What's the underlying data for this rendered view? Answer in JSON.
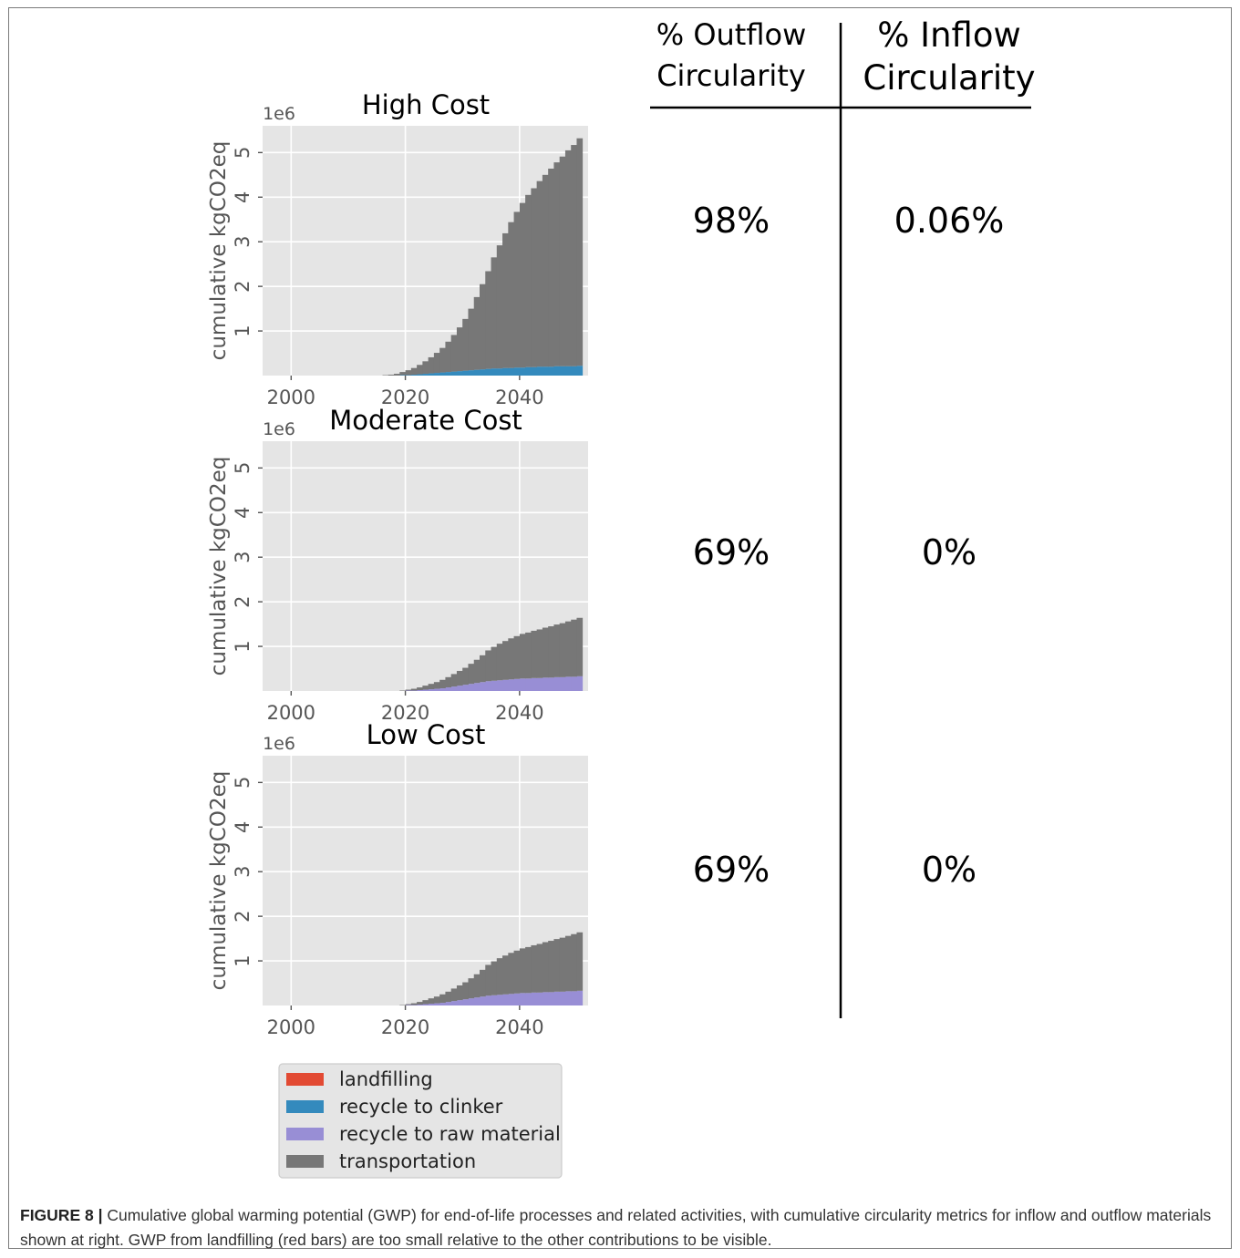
{
  "chart_data": [
    {
      "type": "area",
      "title": "High Cost",
      "ylabel": "cumulative kgCO2eq",
      "y_scale_label": "1e6",
      "xlim": [
        1995,
        2052
      ],
      "ylim": [
        0,
        5.6
      ],
      "x_ticks": [
        "2000",
        "2020",
        "2040"
      ],
      "y_ticks": [
        "1",
        "2",
        "3",
        "4",
        "5"
      ],
      "grid": true,
      "stacked": true,
      "x": [
        2016,
        2017,
        2018,
        2019,
        2020,
        2021,
        2022,
        2023,
        2024,
        2025,
        2026,
        2027,
        2028,
        2029,
        2030,
        2031,
        2032,
        2033,
        2034,
        2035,
        2036,
        2037,
        2038,
        2039,
        2040,
        2041,
        2042,
        2043,
        2044,
        2045,
        2046,
        2047,
        2048,
        2049,
        2050
      ],
      "series": [
        {
          "name": "landfilling",
          "color": "#e24a33",
          "values": [
            0,
            0,
            0,
            0,
            0,
            0,
            0,
            0,
            0,
            0,
            0,
            0,
            0,
            0,
            0,
            0,
            0,
            0,
            0,
            0,
            0,
            0,
            0,
            0,
            0,
            0,
            0,
            0,
            0,
            0,
            0,
            0,
            0,
            0,
            0
          ]
        },
        {
          "name": "recycle to clinker",
          "color": "#348abd",
          "values": [
            0.0,
            0.0,
            0.0,
            0.01,
            0.01,
            0.02,
            0.03,
            0.04,
            0.05,
            0.06,
            0.07,
            0.08,
            0.09,
            0.1,
            0.11,
            0.12,
            0.13,
            0.14,
            0.15,
            0.16,
            0.16,
            0.17,
            0.17,
            0.18,
            0.18,
            0.19,
            0.19,
            0.2,
            0.2,
            0.2,
            0.21,
            0.21,
            0.21,
            0.21,
            0.22
          ]
        },
        {
          "name": "recycle to raw material",
          "color": "#988ed5",
          "values": [
            0,
            0,
            0,
            0,
            0,
            0,
            0,
            0,
            0,
            0,
            0,
            0,
            0,
            0,
            0,
            0,
            0,
            0,
            0,
            0,
            0,
            0,
            0,
            0,
            0,
            0,
            0,
            0,
            0,
            0,
            0,
            0,
            0,
            0,
            0
          ]
        },
        {
          "name": "transportation",
          "color": "#777777",
          "values": [
            0.01,
            0.02,
            0.04,
            0.07,
            0.11,
            0.15,
            0.21,
            0.28,
            0.36,
            0.45,
            0.55,
            0.68,
            0.82,
            0.98,
            1.16,
            1.38,
            1.63,
            1.91,
            2.19,
            2.49,
            2.76,
            3.02,
            3.27,
            3.49,
            3.69,
            3.86,
            4.01,
            4.16,
            4.3,
            4.44,
            4.57,
            4.7,
            4.84,
            4.96,
            5.1
          ]
        }
      ]
    },
    {
      "type": "area",
      "title": "Moderate Cost",
      "ylabel": "cumulative kgCO2eq",
      "y_scale_label": "1e6",
      "xlim": [
        1995,
        2052
      ],
      "ylim": [
        0,
        5.6
      ],
      "x_ticks": [
        "2000",
        "2020",
        "2040"
      ],
      "y_ticks": [
        "1",
        "2",
        "3",
        "4",
        "5"
      ],
      "grid": true,
      "stacked": true,
      "x": [
        2019,
        2020,
        2021,
        2022,
        2023,
        2024,
        2025,
        2026,
        2027,
        2028,
        2029,
        2030,
        2031,
        2032,
        2033,
        2034,
        2035,
        2036,
        2037,
        2038,
        2039,
        2040,
        2041,
        2042,
        2043,
        2044,
        2045,
        2046,
        2047,
        2048,
        2049,
        2050
      ],
      "series": [
        {
          "name": "landfilling",
          "color": "#e24a33",
          "values": [
            0,
            0,
            0,
            0,
            0,
            0,
            0,
            0,
            0,
            0,
            0,
            0,
            0,
            0,
            0,
            0,
            0,
            0,
            0,
            0,
            0,
            0,
            0,
            0,
            0,
            0,
            0,
            0,
            0,
            0,
            0,
            0
          ]
        },
        {
          "name": "recycle to clinker",
          "color": "#348abd",
          "values": [
            0,
            0,
            0,
            0,
            0,
            0,
            0,
            0,
            0,
            0,
            0,
            0,
            0,
            0,
            0,
            0,
            0,
            0,
            0,
            0,
            0,
            0,
            0,
            0,
            0,
            0,
            0,
            0,
            0,
            0,
            0,
            0
          ]
        },
        {
          "name": "recycle to raw material",
          "color": "#988ed5",
          "values": [
            0.0,
            0.01,
            0.01,
            0.02,
            0.03,
            0.04,
            0.05,
            0.06,
            0.08,
            0.1,
            0.12,
            0.14,
            0.16,
            0.18,
            0.2,
            0.22,
            0.23,
            0.24,
            0.25,
            0.26,
            0.27,
            0.28,
            0.28,
            0.29,
            0.29,
            0.3,
            0.3,
            0.31,
            0.31,
            0.32,
            0.32,
            0.33
          ]
        },
        {
          "name": "transportation",
          "color": "#777777",
          "values": [
            0.01,
            0.02,
            0.04,
            0.06,
            0.09,
            0.12,
            0.15,
            0.19,
            0.23,
            0.28,
            0.33,
            0.38,
            0.45,
            0.52,
            0.6,
            0.69,
            0.76,
            0.82,
            0.87,
            0.92,
            0.96,
            1.0,
            1.03,
            1.06,
            1.09,
            1.12,
            1.15,
            1.18,
            1.21,
            1.24,
            1.28,
            1.31
          ]
        }
      ]
    },
    {
      "type": "area",
      "title": "Low Cost",
      "ylabel": "cumulative kgCO2eq",
      "y_scale_label": "1e6",
      "xlim": [
        1995,
        2052
      ],
      "ylim": [
        0,
        5.6
      ],
      "x_ticks": [
        "2000",
        "2020",
        "2040"
      ],
      "y_ticks": [
        "1",
        "2",
        "3",
        "4",
        "5"
      ],
      "grid": true,
      "stacked": true,
      "x": [
        2019,
        2020,
        2021,
        2022,
        2023,
        2024,
        2025,
        2026,
        2027,
        2028,
        2029,
        2030,
        2031,
        2032,
        2033,
        2034,
        2035,
        2036,
        2037,
        2038,
        2039,
        2040,
        2041,
        2042,
        2043,
        2044,
        2045,
        2046,
        2047,
        2048,
        2049,
        2050
      ],
      "series": [
        {
          "name": "landfilling",
          "color": "#e24a33",
          "values": [
            0,
            0,
            0,
            0,
            0,
            0,
            0,
            0,
            0,
            0,
            0,
            0,
            0,
            0,
            0,
            0,
            0,
            0,
            0,
            0,
            0,
            0,
            0,
            0,
            0,
            0,
            0,
            0,
            0,
            0,
            0,
            0
          ]
        },
        {
          "name": "recycle to clinker",
          "color": "#348abd",
          "values": [
            0,
            0,
            0,
            0,
            0,
            0,
            0,
            0,
            0,
            0,
            0,
            0,
            0,
            0,
            0,
            0,
            0,
            0,
            0,
            0,
            0,
            0,
            0,
            0,
            0,
            0,
            0,
            0,
            0,
            0,
            0,
            0
          ]
        },
        {
          "name": "recycle to raw material",
          "color": "#988ed5",
          "values": [
            0.0,
            0.01,
            0.01,
            0.02,
            0.03,
            0.04,
            0.05,
            0.06,
            0.08,
            0.1,
            0.12,
            0.14,
            0.16,
            0.18,
            0.2,
            0.22,
            0.23,
            0.24,
            0.25,
            0.26,
            0.27,
            0.28,
            0.28,
            0.29,
            0.29,
            0.3,
            0.3,
            0.31,
            0.31,
            0.32,
            0.32,
            0.33
          ]
        },
        {
          "name": "transportation",
          "color": "#777777",
          "values": [
            0.01,
            0.02,
            0.04,
            0.06,
            0.09,
            0.12,
            0.15,
            0.19,
            0.23,
            0.28,
            0.33,
            0.38,
            0.45,
            0.52,
            0.6,
            0.69,
            0.76,
            0.82,
            0.87,
            0.92,
            0.96,
            1.0,
            1.03,
            1.06,
            1.09,
            1.12,
            1.15,
            1.18,
            1.21,
            1.24,
            1.28,
            1.31
          ]
        }
      ]
    }
  ],
  "legend": {
    "placement": "bottom",
    "items": [
      {
        "label": "landfilling",
        "color": "#e24a33"
      },
      {
        "label": "recycle to clinker",
        "color": "#348abd"
      },
      {
        "label": "recycle to raw material",
        "color": "#988ed5"
      },
      {
        "label": "transportation",
        "color": "#777777"
      }
    ]
  },
  "circularity_table": {
    "header_outflow_line1": "% Outflow",
    "header_outflow_line2": "Circularity",
    "header_inflow_line1": "% Inflow",
    "header_inflow_line2": "Circularity",
    "rows": [
      {
        "outflow": "98%",
        "inflow": "0.06%"
      },
      {
        "outflow": "69%",
        "inflow": "0%"
      },
      {
        "outflow": "69%",
        "inflow": "0%"
      }
    ]
  },
  "caption": {
    "label": "FIGURE 8 |",
    "text": " Cumulative global warming potential (GWP) for end-of-life processes and related activities, with cumulative circularity metrics for inflow and outflow materials shown at right. GWP from landfilling (red bars) are too small relative to the other contributions to be visible."
  },
  "style": {
    "plot_bg": "#e5e5e5",
    "grid_color": "#ffffff",
    "tick_color": "#555555"
  }
}
